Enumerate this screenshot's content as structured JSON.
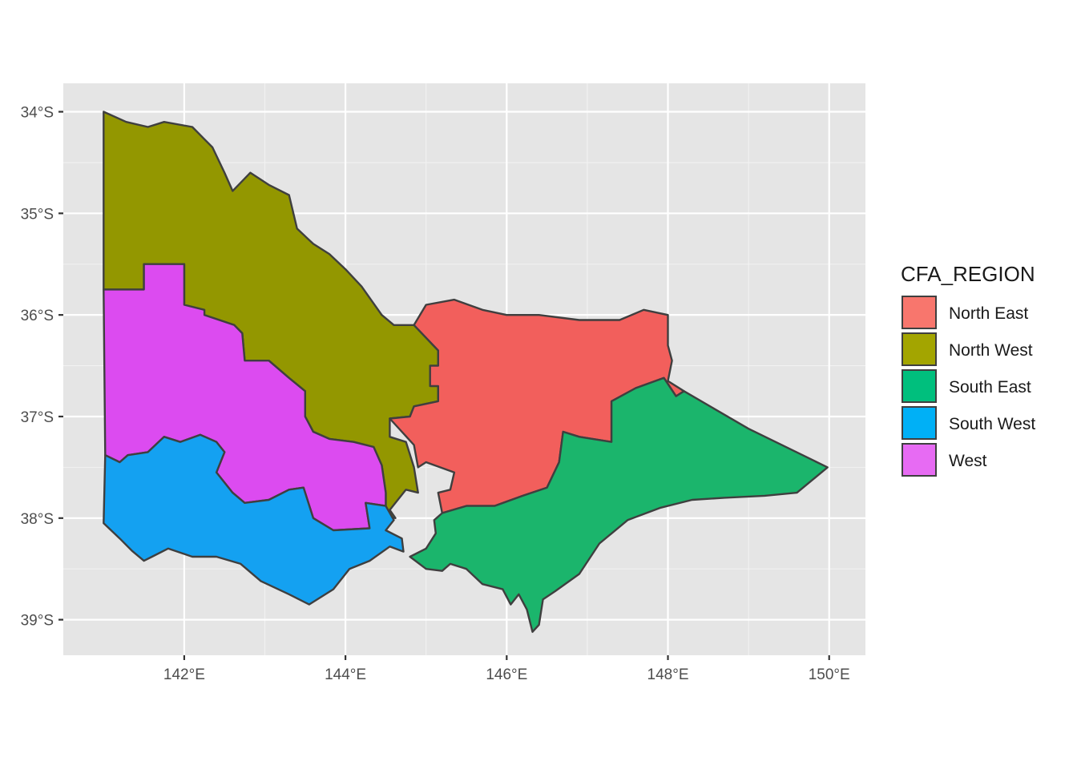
{
  "chart_data": {
    "type": "map",
    "xlim": [
      140.5,
      150.45
    ],
    "ylim": [
      -39.35,
      -33.72
    ],
    "x_ticks": [
      {
        "value": 142,
        "label": "142°E"
      },
      {
        "value": 144,
        "label": "144°E"
      },
      {
        "value": 146,
        "label": "146°E"
      },
      {
        "value": 148,
        "label": "148°E"
      },
      {
        "value": 150,
        "label": "150°E"
      }
    ],
    "y_ticks": [
      {
        "value": -34,
        "label": "34°S"
      },
      {
        "value": -35,
        "label": "35°S"
      },
      {
        "value": -36,
        "label": "36°S"
      },
      {
        "value": -37,
        "label": "37°S"
      },
      {
        "value": -38,
        "label": "38°S"
      },
      {
        "value": -39,
        "label": "39°S"
      }
    ],
    "legend": {
      "title": "CFA_REGION",
      "position": "right",
      "items": [
        {
          "name": "North East",
          "color": "#F8766D"
        },
        {
          "name": "North West",
          "color": "#A3A500"
        },
        {
          "name": "South East",
          "color": "#00BF7D"
        },
        {
          "name": "South West",
          "color": "#00B0F6"
        },
        {
          "name": "West",
          "color": "#E76BF3"
        }
      ]
    },
    "regions": [
      {
        "name": "North West",
        "color": "#939700",
        "coords": [
          [
            141.0,
            -34.0
          ],
          [
            141.28,
            -34.1
          ],
          [
            141.55,
            -34.15
          ],
          [
            141.75,
            -34.1
          ],
          [
            142.1,
            -34.15
          ],
          [
            142.35,
            -34.35
          ],
          [
            142.5,
            -34.6
          ],
          [
            142.6,
            -34.78
          ],
          [
            142.82,
            -34.6
          ],
          [
            143.05,
            -34.72
          ],
          [
            143.3,
            -34.82
          ],
          [
            143.4,
            -35.15
          ],
          [
            143.6,
            -35.3
          ],
          [
            143.8,
            -35.4
          ],
          [
            144.0,
            -35.55
          ],
          [
            144.2,
            -35.72
          ],
          [
            144.45,
            -36.0
          ],
          [
            144.6,
            -36.1
          ],
          [
            144.85,
            -36.1
          ],
          [
            145.15,
            -36.35
          ],
          [
            145.15,
            -36.5
          ],
          [
            145.05,
            -36.5
          ],
          [
            145.05,
            -36.7
          ],
          [
            145.15,
            -36.7
          ],
          [
            145.15,
            -36.85
          ],
          [
            144.85,
            -36.9
          ],
          [
            144.8,
            -37.0
          ],
          [
            144.55,
            -37.02
          ],
          [
            144.55,
            -37.2
          ],
          [
            144.75,
            -37.25
          ],
          [
            144.85,
            -37.5
          ],
          [
            144.9,
            -37.75
          ],
          [
            144.75,
            -37.72
          ],
          [
            144.55,
            -37.92
          ],
          [
            144.62,
            -38.0
          ],
          [
            144.5,
            -37.98
          ],
          [
            144.5,
            -37.75
          ],
          [
            144.45,
            -37.48
          ],
          [
            144.35,
            -37.3
          ],
          [
            144.1,
            -37.25
          ],
          [
            143.8,
            -37.22
          ],
          [
            143.6,
            -37.15
          ],
          [
            143.5,
            -37.0
          ],
          [
            143.5,
            -36.75
          ],
          [
            143.3,
            -36.62
          ],
          [
            143.05,
            -36.45
          ],
          [
            142.75,
            -36.45
          ],
          [
            142.72,
            -36.18
          ],
          [
            142.62,
            -36.1
          ],
          [
            142.25,
            -36.0
          ],
          [
            142.0,
            -36.0
          ],
          [
            142.0,
            -35.5
          ],
          [
            141.5,
            -35.5
          ],
          [
            141.5,
            -35.75
          ],
          [
            141.0,
            -35.75
          ]
        ]
      },
      {
        "name": "West",
        "color": "#DC4BF0",
        "coords": [
          [
            141.0,
            -35.75
          ],
          [
            141.5,
            -35.75
          ],
          [
            141.5,
            -35.5
          ],
          [
            142.0,
            -35.5
          ],
          [
            142.0,
            -35.9
          ],
          [
            142.25,
            -35.95
          ],
          [
            142.25,
            -36.0
          ],
          [
            142.62,
            -36.1
          ],
          [
            142.72,
            -36.18
          ],
          [
            142.75,
            -36.45
          ],
          [
            143.05,
            -36.45
          ],
          [
            143.3,
            -36.62
          ],
          [
            143.5,
            -36.75
          ],
          [
            143.5,
            -37.0
          ],
          [
            143.6,
            -37.15
          ],
          [
            143.8,
            -37.22
          ],
          [
            144.1,
            -37.25
          ],
          [
            144.35,
            -37.3
          ],
          [
            144.45,
            -37.48
          ],
          [
            144.5,
            -37.75
          ],
          [
            144.5,
            -37.88
          ],
          [
            144.25,
            -37.85
          ],
          [
            144.3,
            -38.1
          ],
          [
            143.85,
            -38.12
          ],
          [
            143.6,
            -38.0
          ],
          [
            143.48,
            -37.7
          ],
          [
            143.3,
            -37.72
          ],
          [
            143.05,
            -37.82
          ],
          [
            142.75,
            -37.85
          ],
          [
            142.6,
            -37.75
          ],
          [
            142.4,
            -37.55
          ],
          [
            142.5,
            -37.35
          ],
          [
            142.4,
            -37.25
          ],
          [
            142.2,
            -37.18
          ],
          [
            141.95,
            -37.25
          ],
          [
            141.75,
            -37.2
          ],
          [
            141.55,
            -37.35
          ],
          [
            141.3,
            -37.38
          ],
          [
            141.2,
            -37.45
          ],
          [
            141.02,
            -37.38
          ]
        ]
      },
      {
        "name": "South West",
        "color": "#14A1F1",
        "coords": [
          [
            141.02,
            -37.38
          ],
          [
            141.2,
            -37.45
          ],
          [
            141.3,
            -37.38
          ],
          [
            141.55,
            -37.35
          ],
          [
            141.75,
            -37.2
          ],
          [
            141.95,
            -37.25
          ],
          [
            142.2,
            -37.18
          ],
          [
            142.4,
            -37.25
          ],
          [
            142.5,
            -37.35
          ],
          [
            142.4,
            -37.55
          ],
          [
            142.6,
            -37.75
          ],
          [
            142.75,
            -37.85
          ],
          [
            143.05,
            -37.82
          ],
          [
            143.3,
            -37.72
          ],
          [
            143.48,
            -37.7
          ],
          [
            143.6,
            -38.0
          ],
          [
            143.85,
            -38.12
          ],
          [
            144.3,
            -38.1
          ],
          [
            144.25,
            -37.85
          ],
          [
            144.5,
            -37.88
          ],
          [
            144.6,
            -38.02
          ],
          [
            144.5,
            -38.12
          ],
          [
            144.7,
            -38.2
          ],
          [
            144.72,
            -38.33
          ],
          [
            144.55,
            -38.28
          ],
          [
            144.3,
            -38.42
          ],
          [
            144.05,
            -38.5
          ],
          [
            143.85,
            -38.7
          ],
          [
            143.55,
            -38.85
          ],
          [
            143.3,
            -38.75
          ],
          [
            142.95,
            -38.62
          ],
          [
            142.7,
            -38.45
          ],
          [
            142.4,
            -38.38
          ],
          [
            142.1,
            -38.38
          ],
          [
            141.8,
            -38.3
          ],
          [
            141.6,
            -38.38
          ],
          [
            141.5,
            -38.42
          ],
          [
            141.35,
            -38.32
          ],
          [
            141.2,
            -38.2
          ],
          [
            141.0,
            -38.05
          ]
        ]
      },
      {
        "name": "North East",
        "color": "#F25F5C",
        "coords": [
          [
            144.85,
            -36.1
          ],
          [
            145.0,
            -35.9
          ],
          [
            145.35,
            -35.85
          ],
          [
            145.7,
            -35.95
          ],
          [
            146.0,
            -36.0
          ],
          [
            146.4,
            -36.0
          ],
          [
            146.9,
            -36.05
          ],
          [
            147.4,
            -36.05
          ],
          [
            147.7,
            -35.95
          ],
          [
            148.0,
            -36.0
          ],
          [
            148.0,
            -36.3
          ],
          [
            148.05,
            -36.45
          ],
          [
            148.0,
            -36.65
          ],
          [
            148.2,
            -36.75
          ],
          [
            148.1,
            -36.8
          ],
          [
            147.95,
            -36.62
          ],
          [
            147.6,
            -36.72
          ],
          [
            147.3,
            -36.85
          ],
          [
            147.3,
            -37.25
          ],
          [
            146.9,
            -37.2
          ],
          [
            146.7,
            -37.15
          ],
          [
            146.65,
            -37.45
          ],
          [
            146.5,
            -37.7
          ],
          [
            146.2,
            -37.78
          ],
          [
            145.85,
            -37.88
          ],
          [
            145.5,
            -37.88
          ],
          [
            145.2,
            -37.95
          ],
          [
            145.15,
            -37.75
          ],
          [
            145.3,
            -37.72
          ],
          [
            145.35,
            -37.55
          ],
          [
            145.0,
            -37.45
          ],
          [
            144.9,
            -37.5
          ],
          [
            144.85,
            -37.28
          ],
          [
            144.7,
            -37.15
          ],
          [
            144.55,
            -37.02
          ],
          [
            144.8,
            -37.0
          ],
          [
            144.85,
            -36.9
          ],
          [
            145.15,
            -36.85
          ],
          [
            145.15,
            -36.7
          ],
          [
            145.05,
            -36.7
          ],
          [
            145.05,
            -36.5
          ],
          [
            145.15,
            -36.5
          ],
          [
            145.15,
            -36.35
          ]
        ]
      },
      {
        "name": "South East",
        "color": "#1BB56C",
        "coords": [
          [
            145.2,
            -37.95
          ],
          [
            145.5,
            -37.88
          ],
          [
            145.85,
            -37.88
          ],
          [
            146.2,
            -37.78
          ],
          [
            146.5,
            -37.7
          ],
          [
            146.65,
            -37.45
          ],
          [
            146.7,
            -37.15
          ],
          [
            146.9,
            -37.2
          ],
          [
            147.3,
            -37.25
          ],
          [
            147.3,
            -36.85
          ],
          [
            147.6,
            -36.72
          ],
          [
            147.95,
            -36.62
          ],
          [
            148.1,
            -36.8
          ],
          [
            148.2,
            -36.75
          ],
          [
            149.0,
            -37.12
          ],
          [
            149.98,
            -37.5
          ],
          [
            149.6,
            -37.75
          ],
          [
            149.2,
            -37.78
          ],
          [
            148.7,
            -37.8
          ],
          [
            148.3,
            -37.82
          ],
          [
            147.9,
            -37.9
          ],
          [
            147.5,
            -38.02
          ],
          [
            147.15,
            -38.25
          ],
          [
            146.9,
            -38.55
          ],
          [
            146.6,
            -38.72
          ],
          [
            146.45,
            -38.8
          ],
          [
            146.4,
            -39.05
          ],
          [
            146.32,
            -39.12
          ],
          [
            146.25,
            -38.9
          ],
          [
            146.15,
            -38.75
          ],
          [
            146.05,
            -38.85
          ],
          [
            145.95,
            -38.7
          ],
          [
            145.7,
            -38.65
          ],
          [
            145.5,
            -38.5
          ],
          [
            145.3,
            -38.45
          ],
          [
            145.2,
            -38.52
          ],
          [
            145.0,
            -38.5
          ],
          [
            144.8,
            -38.38
          ],
          [
            145.0,
            -38.3
          ],
          [
            145.12,
            -38.15
          ],
          [
            145.1,
            -38.02
          ]
        ]
      }
    ]
  }
}
